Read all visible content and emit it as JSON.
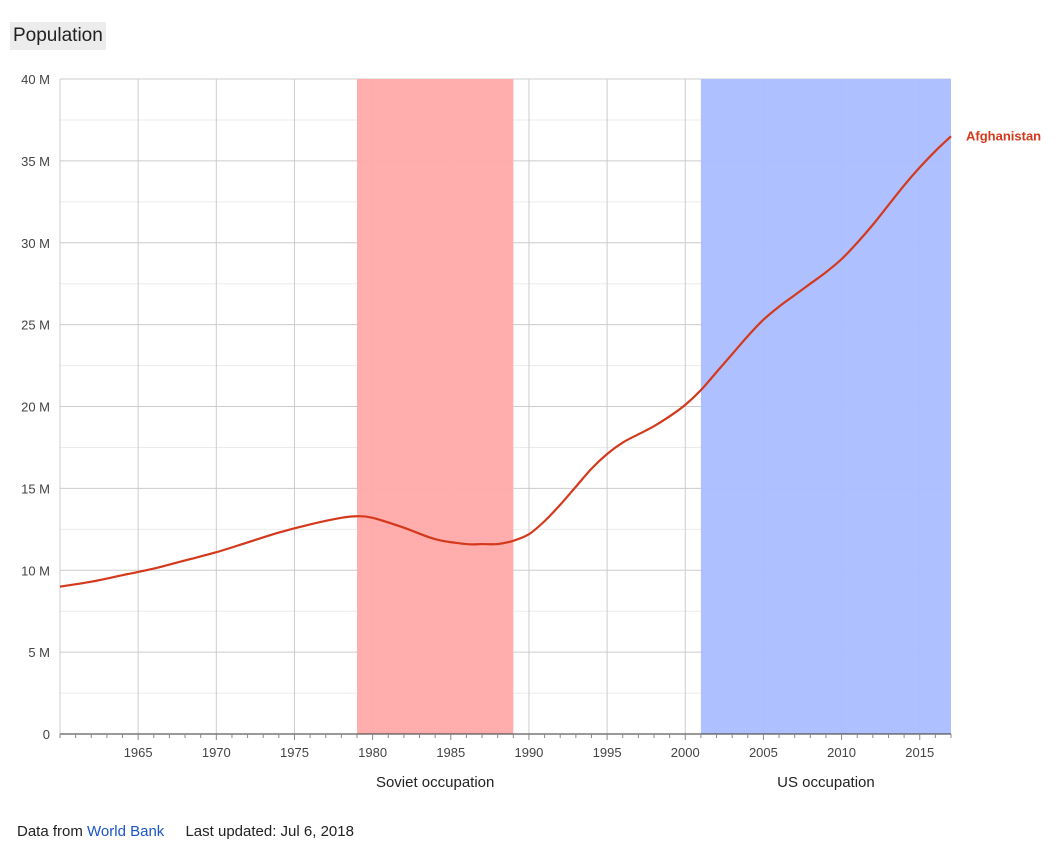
{
  "title": "Population",
  "footer": {
    "source_prefix": "Data from",
    "source_link": "World Bank",
    "last_updated": "Last updated: Jul 6, 2018"
  },
  "colors": {
    "series": "#d4391c",
    "soviet_band": "#ffa9a9",
    "us_band": "#aabdff",
    "grid_major": "#cccccc",
    "grid_minor": "#ebebeb",
    "axis_text": "#444444",
    "label_text": "#222222"
  },
  "chart_data": {
    "type": "line",
    "title": "Population",
    "x": [
      1960,
      1962,
      1964,
      1966,
      1968,
      1970,
      1972,
      1974,
      1976,
      1978,
      1979,
      1980,
      1982,
      1984,
      1986,
      1987,
      1988,
      1989,
      1990,
      1991,
      1992,
      1993,
      1994,
      1995,
      1996,
      1997,
      1998,
      1999,
      2000,
      2001,
      2002,
      2003,
      2004,
      2005,
      2006,
      2007,
      2008,
      2009,
      2010,
      2011,
      2012,
      2013,
      2014,
      2015,
      2016,
      2017
    ],
    "series": [
      {
        "name": "Afghanistan",
        "values": [
          9.0,
          9.3,
          9.7,
          10.1,
          10.6,
          11.1,
          11.7,
          12.3,
          12.8,
          13.2,
          13.3,
          13.2,
          12.6,
          11.9,
          11.6,
          11.6,
          11.6,
          11.8,
          12.2,
          13.0,
          14.0,
          15.1,
          16.2,
          17.1,
          17.8,
          18.3,
          18.8,
          19.4,
          20.1,
          21.0,
          22.1,
          23.2,
          24.3,
          25.3,
          26.1,
          26.8,
          27.5,
          28.2,
          29.0,
          30.0,
          31.1,
          32.3,
          33.5,
          34.6,
          35.6,
          36.5
        ]
      }
    ],
    "bands": [
      {
        "label": "Soviet occupation",
        "start": 1979,
        "end": 1989,
        "color": "#ffa9a9"
      },
      {
        "label": "US occupation",
        "start": 2001,
        "end": 2017,
        "color": "#aabdff"
      }
    ],
    "xlim": [
      1960,
      2017
    ],
    "ylim": [
      0,
      40
    ],
    "x_ticks": [
      1965,
      1970,
      1975,
      1980,
      1985,
      1990,
      1995,
      2000,
      2005,
      2010,
      2015
    ],
    "x_tick_labels": [
      "1965",
      "1970",
      "1975",
      "1980",
      "1985",
      "1990",
      "1995",
      "2000",
      "2005",
      "2010",
      "2015"
    ],
    "y_ticks": [
      0,
      5,
      10,
      15,
      20,
      25,
      30,
      35,
      40
    ],
    "y_tick_labels": [
      "0",
      "5 M",
      "10 M",
      "15 M",
      "20 M",
      "25 M",
      "30 M",
      "35 M",
      "40 M"
    ],
    "xlabel": "",
    "ylabel": "",
    "grid": true,
    "legend": "right-end"
  }
}
